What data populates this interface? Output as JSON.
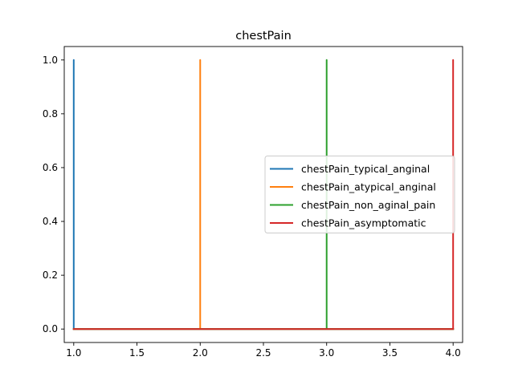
{
  "chart_data": {
    "type": "line",
    "title": "chestPain",
    "xlabel": "",
    "ylabel": "",
    "xlim": [
      0.925,
      4.075
    ],
    "ylim": [
      -0.05,
      1.05
    ],
    "xticks": [
      1.0,
      1.5,
      2.0,
      2.5,
      3.0,
      3.5,
      4.0
    ],
    "xtick_labels": [
      "1.0",
      "1.5",
      "2.0",
      "2.5",
      "3.0",
      "3.5",
      "4.0"
    ],
    "yticks": [
      0.0,
      0.2,
      0.4,
      0.6,
      0.8,
      1.0
    ],
    "ytick_labels": [
      "0.0",
      "0.2",
      "0.4",
      "0.6",
      "0.8",
      "1.0"
    ],
    "grid": false,
    "legend_position": "center-right",
    "series": [
      {
        "name": "chestPain_typical_anginal",
        "color": "#1f77b4",
        "x": [
          1.0,
          1.0,
          1.0,
          4.0
        ],
        "y": [
          0,
          1,
          0,
          0
        ]
      },
      {
        "name": "chestPain_atypical_anginal",
        "color": "#ff7f0e",
        "x": [
          1.0,
          2.0,
          2.0,
          2.0,
          4.0
        ],
        "y": [
          0,
          0,
          1,
          0,
          0
        ]
      },
      {
        "name": "chestPain_non_aginal_pain",
        "color": "#2ca02c",
        "x": [
          1.0,
          3.0,
          3.0,
          3.0,
          4.0
        ],
        "y": [
          0,
          0,
          1,
          0,
          0
        ]
      },
      {
        "name": "chestPain_asymptomatic",
        "color": "#d62728",
        "x": [
          1.0,
          4.0,
          4.0,
          4.0
        ],
        "y": [
          0,
          0,
          1,
          0
        ]
      }
    ]
  }
}
